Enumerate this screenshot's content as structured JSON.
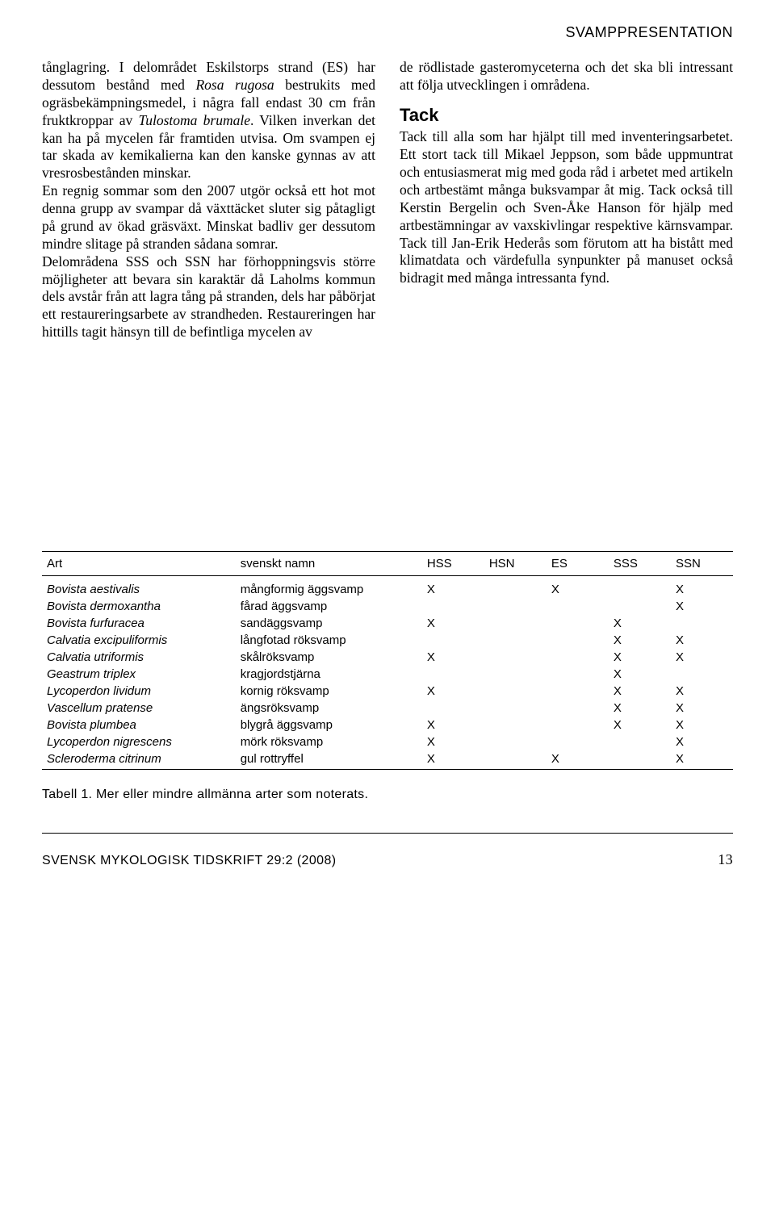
{
  "section_header": "SVAMPPRESENTATION",
  "left_col": {
    "p1_a": "tånglagring. I delområdet Eskilstorps strand (ES) har dessutom bestånd med ",
    "p1_ital1": "Rosa rugosa",
    "p1_b": " bestrukits med ogräsbekämpningsmedel, i några fall endast 30 cm från fruktkroppar av ",
    "p1_ital2": "Tulostoma brumale",
    "p1_c": ". Vilken inverkan det kan ha på mycelen får framtiden utvisa. Om svampen ej tar skada av kemikalierna kan den kanske gynnas av att vresrosbestånden minskar.",
    "p2": "En regnig sommar som den 2007 utgör också ett hot mot denna grupp av svampar då växttäcket sluter sig påtagligt på grund av ökad gräsväxt. Minskat badliv ger dessutom mindre slitage på stranden sådana somrar.",
    "p3": "Delområdena SSS och SSN har förhoppningsvis större möjligheter att bevara sin karaktär då Laholms kommun dels avstår från att lagra tång på stranden, dels har påbörjat ett restaureringsarbete av strandheden. Restaureringen har hittills tagit hänsyn till de befintliga mycelen av"
  },
  "right_col": {
    "p1": "de rödlistade gasteromyceterna och det ska bli intressant att följa utvecklingen i områdena.",
    "tack_heading": "Tack",
    "p2": "Tack till alla som har hjälpt till med inventeringsarbetet. Ett stort tack till Mikael Jeppson, som både uppmuntrat och entusiasmerat mig med goda råd i arbetet med artikeln och artbestämt många buksvampar åt mig. Tack också till Kerstin Bergelin och Sven-Åke Hanson för hjälp med artbestämningar av vaxskivlingar respektive kärnsvampar. Tack till Jan-Erik Hederås som förutom att ha bistått med klimatdata och värdefulla synpunkter på manuset också bidragit med många intressanta fynd."
  },
  "table": {
    "columns": [
      "Art",
      "svenskt namn",
      "HSS",
      "HSN",
      "ES",
      "SSS",
      "SSN"
    ],
    "rows": [
      [
        "Bovista aestivalis",
        "mångformig äggsvamp",
        "X",
        "",
        "X",
        "",
        "X"
      ],
      [
        "Bovista dermoxantha",
        "fårad äggsvamp",
        "",
        "",
        "",
        "",
        "X"
      ],
      [
        "Bovista furfuracea",
        "sandäggsvamp",
        "X",
        "",
        "",
        "X",
        ""
      ],
      [
        "Calvatia excipuliformis",
        "långfotad röksvamp",
        "",
        "",
        "",
        "X",
        "X"
      ],
      [
        "Calvatia utriformis",
        "skålröksvamp",
        "X",
        "",
        "",
        "X",
        "X"
      ],
      [
        "Geastrum triplex",
        "kragjordstjärna",
        "",
        "",
        "",
        "X",
        ""
      ],
      [
        "Lycoperdon lividum",
        "kornig röksvamp",
        "X",
        "",
        "",
        "X",
        "X"
      ],
      [
        "Vascellum pratense",
        "ängsröksvamp",
        "",
        "",
        "",
        "X",
        "X"
      ],
      [
        "Bovista plumbea",
        "blygrå äggsvamp",
        "X",
        "",
        "",
        "X",
        "X"
      ],
      [
        "Lycoperdon nigrescens",
        "mörk röksvamp",
        "X",
        "",
        "",
        "",
        "X"
      ],
      [
        "Scleroderma citrinum",
        "gul rottryffel",
        "X",
        "",
        "X",
        "",
        "X"
      ]
    ]
  },
  "caption": "Tabell 1. Mer eller mindre allmänna arter som noterats.",
  "footer_journal": "SVENSK MYKOLOGISK TIDSKRIFT  29:2 (2008)",
  "page_number": "13"
}
